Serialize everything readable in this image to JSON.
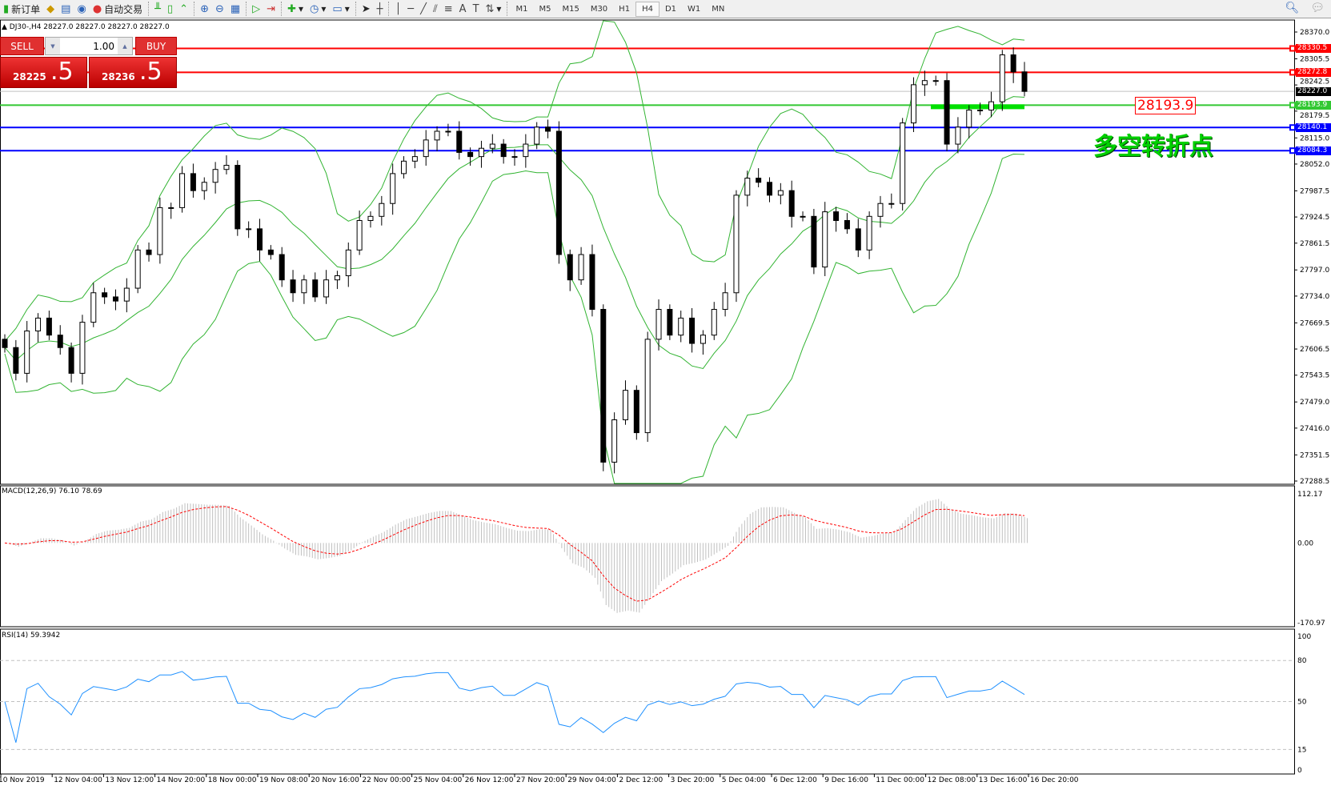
{
  "toolbar": {
    "new_order": "新订单",
    "auto_trading": "自动交易",
    "icons": [
      "new-order-icon",
      "market-watch-icon",
      "navigator-icon",
      "signals-icon",
      "auto-trading-icon",
      "bar-chart-icon",
      "candlestick-icon",
      "line-chart-icon",
      "zoom-in-icon",
      "zoom-out-icon",
      "tile-windows-icon",
      "auto-scroll-icon",
      "chart-shift-icon",
      "indicators-icon",
      "periods-icon",
      "templates-icon",
      "cursor-icon",
      "crosshair-icon",
      "vertical-line-icon",
      "horizontal-line-icon",
      "trendline-icon",
      "equidistant-channel-icon",
      "fibonacci-icon",
      "text-icon",
      "text-label-icon",
      "arrows-icon"
    ],
    "timeframes": [
      "M1",
      "M5",
      "M15",
      "M30",
      "H1",
      "H4",
      "D1",
      "W1",
      "MN"
    ],
    "active_timeframe": "H4"
  },
  "chart": {
    "title": "DJ30-,H4  28227.0 28227.0 28227.0 28227.0",
    "trade": {
      "sell": "SELL",
      "buy": "BUY",
      "lot": "1.00",
      "bid_main": "28225",
      "bid_big": ".5",
      "ask_main": "28236",
      "ask_big": ".5"
    },
    "price_ticks": [
      "28370.0",
      "28305.5",
      "28242.5",
      "28179.5",
      "28115.0",
      "28052.0",
      "27987.5",
      "27924.5",
      "27861.5",
      "27797.0",
      "27734.0",
      "27669.5",
      "27606.5",
      "27543.5",
      "27479.0",
      "27416.0",
      "27351.5",
      "27288.5"
    ],
    "price_range": [
      27288.5,
      28370.0
    ],
    "hlines": [
      {
        "price": 28330.5,
        "label": "28330.5",
        "color": "#ff0000"
      },
      {
        "price": 28272.8,
        "label": "28272.8",
        "color": "#ff0000"
      },
      {
        "price": 28227.0,
        "label": "28227.0",
        "color": "#000000",
        "current": true
      },
      {
        "price": 28193.9,
        "label": "28193.9",
        "color": "#32c832"
      },
      {
        "price": 28140.1,
        "label": "28140.1",
        "color": "#0000ff"
      },
      {
        "price": 28084.3,
        "label": "28084.3",
        "color": "#0000ff"
      }
    ],
    "annotation_price": "28193.9",
    "annotation_text": "多空转折点",
    "closes": [
      27610,
      27548,
      27650,
      27681,
      27640,
      27610,
      27548,
      27671,
      27742,
      27732,
      27722,
      27753,
      27845,
      27834,
      27947,
      27947,
      28029,
      27988,
      28008,
      28039,
      28049,
      27896,
      27896,
      27845,
      27834,
      27773,
      27742,
      27773,
      27732,
      27773,
      27783,
      27845,
      27916,
      27926,
      27957,
      28029,
      28059,
      28070,
      28110,
      28131,
      28131,
      28080,
      28070,
      28090,
      28100,
      28070,
      28070,
      28100,
      28141,
      28131,
      27834,
      27773,
      27834,
      27702,
      27334,
      27436,
      27507,
      27405,
      27630,
      27702,
      27640,
      27681,
      27620,
      27640,
      27702,
      27742,
      27977,
      28018,
      28008,
      27977,
      27988,
      27926,
      27926,
      27804,
      27937,
      27916,
      27896,
      27845,
      27926,
      27957,
      27957,
      28151,
      28243,
      28253,
      28253,
      28100,
      28141,
      28182,
      28182,
      28202,
      28315,
      28274,
      28227
    ],
    "x_labels": [
      "10 Nov 2019",
      "12 Nov 04:00",
      "13 Nov 12:00",
      "14 Nov 20:00",
      "18 Nov 00:00",
      "19 Nov 08:00",
      "20 Nov 16:00",
      "22 Nov 00:00",
      "25 Nov 04:00",
      "26 Nov 12:00",
      "27 Nov 20:00",
      "29 Nov 04:00",
      "2 Dec 12:00",
      "3 Dec 20:00",
      "5 Dec 04:00",
      "6 Dec 12:00",
      "9 Dec 16:00",
      "11 Dec 00:00",
      "12 Dec 08:00",
      "13 Dec 16:00",
      "16 Dec 20:00"
    ],
    "bands_color": "#32b432"
  },
  "macd": {
    "label": "MACD(12,26,9) 76.10 78.69",
    "max": "112.17",
    "zero": "0.00",
    "min": "-170.97",
    "range": [
      -170.97,
      112.17
    ],
    "signal_color": "#ff0000",
    "hist_color": "#c0c0c0"
  },
  "rsi": {
    "label": "RSI(14) 59.3942",
    "ticks": [
      "100",
      "80",
      "50",
      "15",
      "0"
    ],
    "levels": [
      80,
      50,
      15
    ],
    "color": "#1e90ff"
  }
}
